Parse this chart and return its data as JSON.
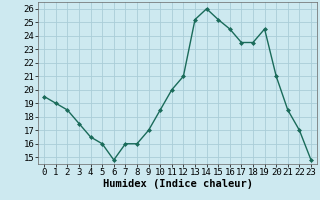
{
  "x": [
    0,
    1,
    2,
    3,
    4,
    5,
    6,
    7,
    8,
    9,
    10,
    11,
    12,
    13,
    14,
    15,
    16,
    17,
    18,
    19,
    20,
    21,
    22,
    23
  ],
  "y": [
    19.5,
    19.0,
    18.5,
    17.5,
    16.5,
    16.0,
    14.8,
    16.0,
    16.0,
    17.0,
    18.5,
    20.0,
    21.0,
    25.2,
    26.0,
    25.2,
    24.5,
    23.5,
    23.5,
    24.5,
    21.0,
    18.5,
    17.0,
    14.8
  ],
  "line_color": "#1a6b5a",
  "marker": "D",
  "marker_size": 2.0,
  "linewidth": 1.0,
  "bg_color": "#cde9f0",
  "grid_color": "#aacdd8",
  "xlabel": "Humidex (Indice chaleur)",
  "ylim": [
    14.5,
    26.5
  ],
  "xlim": [
    -0.5,
    23.5
  ],
  "yticks": [
    15,
    16,
    17,
    18,
    19,
    20,
    21,
    22,
    23,
    24,
    25,
    26
  ],
  "xticks": [
    0,
    1,
    2,
    3,
    4,
    5,
    6,
    7,
    8,
    9,
    10,
    11,
    12,
    13,
    14,
    15,
    16,
    17,
    18,
    19,
    20,
    21,
    22,
    23
  ],
  "xlabel_fontsize": 7.5,
  "tick_fontsize": 6.5
}
